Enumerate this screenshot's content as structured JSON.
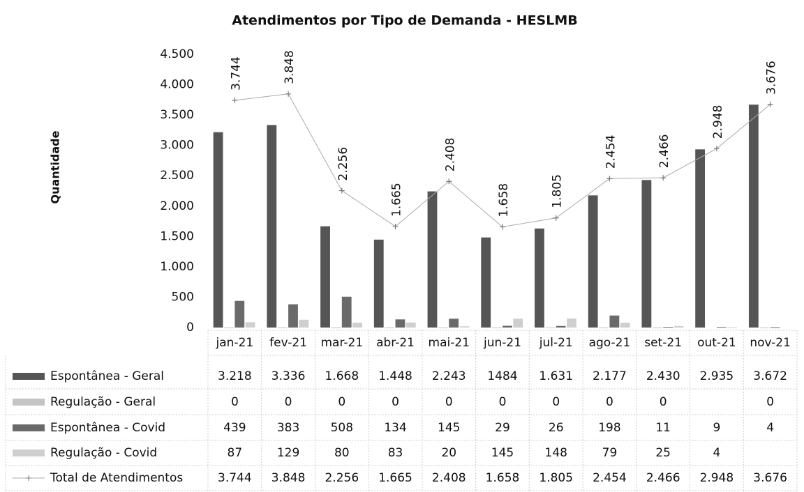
{
  "chart_data": {
    "type": "bar",
    "title": "Atendimentos por Tipo de Demanda - HESLMB",
    "ylabel": "Quantidade",
    "categories": [
      "jan-21",
      "fev-21",
      "mar-21",
      "abr-21",
      "mai-21",
      "jun-21",
      "jul-21",
      "ago-21",
      "set-21",
      "out-21",
      "nov-21"
    ],
    "ylim": [
      0,
      4500
    ],
    "yticks": [
      0,
      500,
      {
        "value": 1000,
        "label": "1.000"
      },
      {
        "value": 1500,
        "label": "1.500"
      },
      {
        "value": 2000,
        "label": "2.000"
      },
      {
        "value": 2500,
        "label": "2.500"
      },
      {
        "value": 3000,
        "label": "3.000"
      },
      {
        "value": 3500,
        "label": "3.500"
      },
      {
        "value": 4000,
        "label": "4.000"
      },
      {
        "value": 4500,
        "label": "4.500"
      }
    ],
    "grid": false,
    "series": [
      {
        "name": "Espontânea - Geral",
        "type": "bar",
        "color": "#555555",
        "values": [
          3218,
          3336,
          1668,
          1448,
          2243,
          1484,
          1631,
          2177,
          2430,
          2935,
          3672
        ],
        "value_labels": [
          "3.218",
          "3.336",
          "1.668",
          "1.448",
          "2.243",
          "1484",
          "1.631",
          "2.177",
          "2.430",
          "2.935",
          "3.672"
        ]
      },
      {
        "name": "Regulação - Geral",
        "type": "bar",
        "color": "#c4c4c4",
        "values": [
          0,
          0,
          0,
          0,
          0,
          0,
          0,
          0,
          0,
          null,
          0
        ],
        "value_labels": [
          "0",
          "0",
          "0",
          "0",
          "0",
          "0",
          "0",
          "0",
          "0",
          null,
          "0"
        ]
      },
      {
        "name": "Espontânea - Covid",
        "type": "bar",
        "color": "#6a6a6a",
        "values": [
          439,
          383,
          508,
          134,
          145,
          29,
          26,
          198,
          11,
          9,
          4
        ],
        "value_labels": [
          "439",
          "383",
          "508",
          "134",
          "145",
          "29",
          "26",
          "198",
          "11",
          "9",
          "4"
        ]
      },
      {
        "name": "Regulação - Covid",
        "type": "bar",
        "color": "#cfcfcf",
        "values": [
          87,
          129,
          80,
          83,
          20,
          145,
          148,
          79,
          25,
          4,
          null
        ],
        "value_labels": [
          "87",
          "129",
          "80",
          "83",
          "20",
          "145",
          "148",
          "79",
          "25",
          "4",
          null
        ]
      },
      {
        "name": "Total de Atendimentos",
        "type": "line",
        "color": "#aaaaaa",
        "values": [
          3744,
          3848,
          2256,
          1665,
          2408,
          1658,
          1805,
          2454,
          2466,
          2948,
          3676
        ],
        "value_labels": [
          "3.744",
          "3.848",
          "2.256",
          "1.665",
          "2.408",
          "1.658",
          "1.805",
          "2.454",
          "2.466",
          "2.948",
          "3.676"
        ]
      }
    ]
  }
}
